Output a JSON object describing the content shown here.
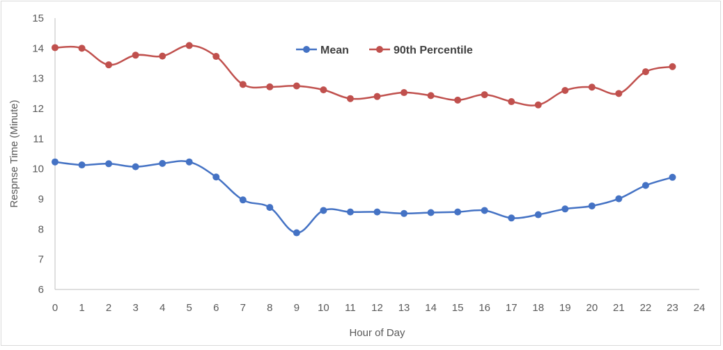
{
  "chart_data": {
    "type": "line",
    "title": "",
    "xlabel": "Hour of Day",
    "ylabel": "Respnse Time (Minute)",
    "xlim": [
      0,
      24
    ],
    "ylim": [
      6,
      15
    ],
    "x_ticks": [
      0,
      1,
      2,
      3,
      4,
      5,
      6,
      7,
      8,
      9,
      10,
      11,
      12,
      13,
      14,
      15,
      16,
      17,
      18,
      19,
      20,
      21,
      22,
      23,
      24
    ],
    "y_ticks": [
      6,
      7,
      8,
      9,
      10,
      11,
      12,
      13,
      14,
      15
    ],
    "grid": false,
    "legend_position": "top-center",
    "x": [
      0,
      1,
      2,
      3,
      4,
      5,
      6,
      7,
      8,
      9,
      10,
      11,
      12,
      13,
      14,
      15,
      16,
      17,
      18,
      19,
      20,
      21,
      22,
      23
    ],
    "series": [
      {
        "name": "Mean",
        "color": "#4472c4",
        "values": [
          10.23,
          10.13,
          10.17,
          10.07,
          10.18,
          10.23,
          9.73,
          8.97,
          8.72,
          7.88,
          8.62,
          8.57,
          8.57,
          8.52,
          8.55,
          8.57,
          8.62,
          8.37,
          8.48,
          8.67,
          8.77,
          9.01,
          9.45,
          9.72
        ]
      },
      {
        "name": "90th Percentile",
        "color": "#c0504d",
        "values": [
          14.02,
          14.0,
          13.45,
          13.77,
          13.74,
          14.09,
          13.73,
          12.8,
          12.72,
          12.75,
          12.62,
          12.33,
          12.4,
          12.53,
          12.43,
          12.28,
          12.46,
          12.23,
          12.12,
          12.6,
          12.71,
          12.5,
          13.22,
          13.39
        ]
      }
    ]
  }
}
